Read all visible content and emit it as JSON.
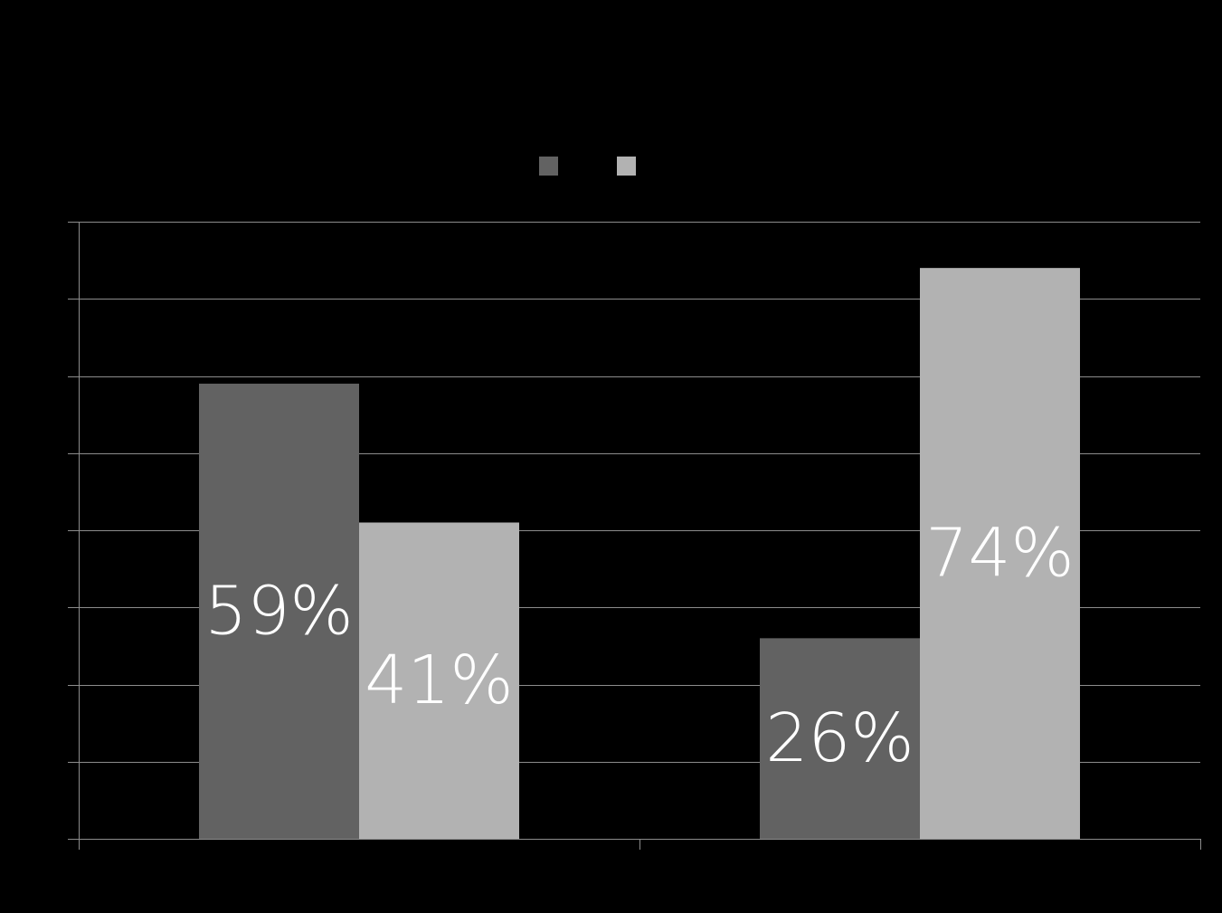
{
  "chart_data": {
    "type": "bar",
    "title": "",
    "xlabel": "",
    "ylabel": "",
    "categories": [
      "",
      ""
    ],
    "series": [
      {
        "color": "#626262",
        "values": [
          59,
          26
        ],
        "labels": [
          "59%",
          "26%"
        ]
      },
      {
        "color": "#b2b2b2",
        "values": [
          41,
          74
        ],
        "labels": [
          "41%",
          "74%"
        ]
      }
    ],
    "ylim": [
      0,
      80
    ],
    "y_tick_step": 10,
    "grid": true,
    "gridline_color": "#8c8c8c",
    "legend_position": "top-center",
    "background": "#000000"
  }
}
